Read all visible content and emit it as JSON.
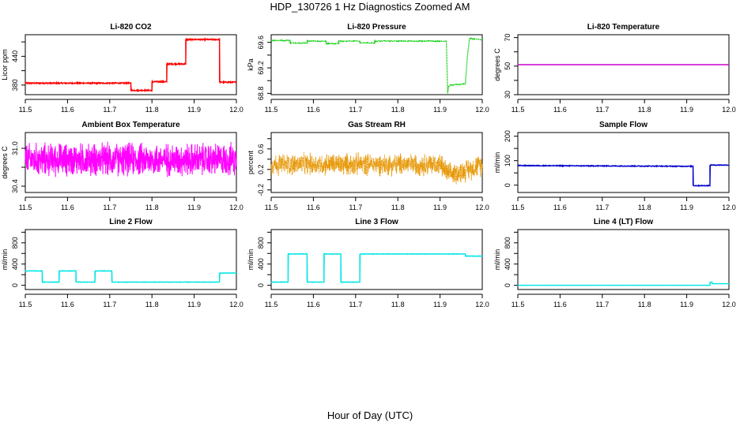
{
  "figure": {
    "title": "HDP_130726  1 Hz Diagnostics Zoomed AM",
    "xlabel": "Hour of Day (UTC)"
  },
  "chart_data": [
    {
      "type": "line",
      "title": "Li-820 CO2",
      "xlabel": "",
      "ylabel": "Licor ppm",
      "xlim": [
        11.5,
        12.0
      ],
      "ylim": [
        360,
        485
      ],
      "xticks": [
        11.5,
        11.6,
        11.7,
        11.8,
        11.9,
        12.0
      ],
      "xtick_labels": [
        "11.5",
        "11.6",
        "11.7",
        "11.8",
        "11.9",
        "12.0"
      ],
      "yticks": [
        380,
        410,
        440,
        470
      ],
      "ytick_labels": [
        "380",
        "",
        "440",
        ""
      ],
      "color": "#ff0000",
      "noise": 1.2,
      "series": [
        {
          "x": [
            11.5,
            11.75,
            11.75,
            11.8,
            11.8,
            11.835,
            11.835,
            11.88,
            11.88,
            11.96,
            11.96,
            12.0
          ],
          "y": [
            384,
            384,
            369,
            369,
            387,
            387,
            424,
            424,
            475,
            475,
            386,
            386
          ]
        }
      ]
    },
    {
      "type": "line",
      "title": "Li-820 Pressure",
      "xlabel": "",
      "ylabel": "kPa",
      "xlim": [
        11.5,
        12.0
      ],
      "ylim": [
        68.78,
        69.72
      ],
      "xticks": [
        11.5,
        11.6,
        11.7,
        11.8,
        11.9,
        12.0
      ],
      "xtick_labels": [
        "11.5",
        "11.6",
        "11.7",
        "11.8",
        "11.9",
        "12.0"
      ],
      "yticks": [
        68.8,
        69.0,
        69.2,
        69.4,
        69.6
      ],
      "ytick_labels": [
        "68.8",
        "",
        "69.2",
        "",
        "69.6"
      ],
      "color": "#00cc00",
      "noise": 0.005,
      "dotted": true,
      "series": [
        {
          "x": [
            11.5,
            11.545,
            11.545,
            11.585,
            11.585,
            11.63,
            11.63,
            11.66,
            11.66,
            11.71,
            11.71,
            11.745,
            11.745,
            11.915,
            11.918,
            11.92,
            11.925,
            11.96,
            11.965,
            11.97,
            12.0
          ],
          "y": [
            69.63,
            69.63,
            69.59,
            69.59,
            69.62,
            69.62,
            69.58,
            69.58,
            69.62,
            69.62,
            69.59,
            69.59,
            69.62,
            69.62,
            68.8,
            68.9,
            68.93,
            68.95,
            69.4,
            69.66,
            69.64
          ]
        }
      ]
    },
    {
      "type": "line",
      "title": "Li-820 Temperature",
      "xlabel": "",
      "ylabel": "degrees C",
      "xlim": [
        11.5,
        12.0
      ],
      "ylim": [
        30,
        72
      ],
      "xticks": [
        11.5,
        11.6,
        11.7,
        11.8,
        11.9,
        12.0
      ],
      "xtick_labels": [
        "11.5",
        "11.6",
        "11.7",
        "11.8",
        "11.9",
        "12.0"
      ],
      "yticks": [
        30,
        40,
        50,
        60,
        70
      ],
      "ytick_labels": [
        "30",
        "",
        "50",
        "",
        "70"
      ],
      "color": "#cc00cc",
      "noise": 0,
      "series": [
        {
          "x": [
            11.5,
            12.0
          ],
          "y": [
            51,
            51
          ]
        }
      ]
    },
    {
      "type": "line",
      "title": "Ambient Box Temperature",
      "xlabel": "",
      "ylabel": "degrees C",
      "xlim": [
        11.5,
        12.0
      ],
      "ylim": [
        30.3,
        31.25
      ],
      "xticks": [
        11.5,
        11.6,
        11.7,
        11.8,
        11.9,
        12.0
      ],
      "xtick_labels": [
        "11.5",
        "11.6",
        "11.7",
        "11.8",
        "11.9",
        "12.0"
      ],
      "yticks": [
        30.4,
        30.7,
        31.0
      ],
      "ytick_labels": [
        "30.4",
        "",
        "31.0"
      ],
      "color": "#ff00ff",
      "noise": 0.22,
      "dense": true,
      "series": [
        {
          "x": [
            11.5,
            12.0
          ],
          "y": [
            30.82,
            30.82
          ]
        }
      ]
    },
    {
      "type": "line",
      "title": "Gas Stream RH",
      "xlabel": "",
      "ylabel": "percent",
      "xlim": [
        11.5,
        12.0
      ],
      "ylim": [
        -0.25,
        0.92
      ],
      "xticks": [
        11.5,
        11.6,
        11.7,
        11.8,
        11.9,
        12.0
      ],
      "xtick_labels": [
        "11.5",
        "11.6",
        "11.7",
        "11.8",
        "11.9",
        "12.0"
      ],
      "yticks": [
        -0.2,
        0.0,
        0.2,
        0.4,
        0.6,
        0.8
      ],
      "ytick_labels": [
        "-0.2",
        "",
        "0.2",
        "",
        "0.6",
        ""
      ],
      "color": "#e69500",
      "noise": 0.18,
      "dense": true,
      "dotted": true,
      "series": [
        {
          "x": [
            11.5,
            11.9,
            11.92,
            11.95,
            12.0
          ],
          "y": [
            0.3,
            0.3,
            0.1,
            0.15,
            0.3
          ]
        }
      ]
    },
    {
      "type": "line",
      "title": "Sample Flow",
      "xlabel": "",
      "ylabel": "ml/min",
      "xlim": [
        11.5,
        12.0
      ],
      "ylim": [
        -30,
        215
      ],
      "xticks": [
        11.5,
        11.6,
        11.7,
        11.8,
        11.9,
        12.0
      ],
      "xtick_labels": [
        "11.5",
        "11.6",
        "11.7",
        "11.8",
        "11.9",
        "12.0"
      ],
      "yticks": [
        0,
        50,
        100,
        150,
        200
      ],
      "ytick_labels": [
        "0",
        "",
        "100",
        "",
        "200"
      ],
      "color": "#0000cc",
      "noise": 1.5,
      "series": [
        {
          "x": [
            11.5,
            11.915,
            11.915,
            11.955,
            11.955,
            12.0
          ],
          "y": [
            80,
            77,
            -2,
            -2,
            82,
            82
          ]
        }
      ]
    },
    {
      "type": "line",
      "title": "Line 2 Flow",
      "xlabel": "",
      "ylabel": "ml/min",
      "xlim": [
        11.5,
        12.0
      ],
      "ylim": [
        -80,
        1050
      ],
      "xticks": [
        11.5,
        11.6,
        11.7,
        11.8,
        11.9,
        12.0
      ],
      "xtick_labels": [
        "11.5",
        "11.6",
        "11.7",
        "11.8",
        "11.9",
        "12.0"
      ],
      "yticks": [
        0,
        200,
        400,
        600,
        800,
        1000
      ],
      "ytick_labels": [
        "0",
        "",
        "400",
        "",
        "800",
        ""
      ],
      "color": "#00e5e5",
      "noise": 4,
      "series": [
        {
          "x": [
            11.5,
            11.54,
            11.54,
            11.58,
            11.58,
            11.62,
            11.62,
            11.665,
            11.665,
            11.705,
            11.705,
            11.96,
            11.96,
            12.0
          ],
          "y": [
            270,
            270,
            60,
            60,
            270,
            270,
            60,
            60,
            270,
            270,
            60,
            60,
            230,
            230
          ]
        }
      ]
    },
    {
      "type": "line",
      "title": "Line 3 Flow",
      "xlabel": "",
      "ylabel": "ml/min",
      "xlim": [
        11.5,
        12.0
      ],
      "ylim": [
        -80,
        1050
      ],
      "xticks": [
        11.5,
        11.6,
        11.7,
        11.8,
        11.9,
        12.0
      ],
      "xtick_labels": [
        "11.5",
        "11.6",
        "11.7",
        "11.8",
        "11.9",
        "12.0"
      ],
      "yticks": [
        0,
        200,
        400,
        600,
        800,
        1000
      ],
      "ytick_labels": [
        "0",
        "",
        "400",
        "",
        "800",
        ""
      ],
      "color": "#00e5e5",
      "noise": 4,
      "series": [
        {
          "x": [
            11.5,
            11.54,
            11.54,
            11.585,
            11.585,
            11.625,
            11.625,
            11.665,
            11.665,
            11.71,
            11.71,
            11.96,
            11.96,
            12.0
          ],
          "y": [
            60,
            60,
            590,
            590,
            60,
            60,
            590,
            590,
            60,
            60,
            590,
            590,
            550,
            550
          ]
        }
      ]
    },
    {
      "type": "line",
      "title": "Line 4 (LT) Flow",
      "xlabel": "",
      "ylabel": "ml/min",
      "xlim": [
        11.5,
        12.0
      ],
      "ylim": [
        -80,
        1050
      ],
      "xticks": [
        11.5,
        11.6,
        11.7,
        11.8,
        11.9,
        12.0
      ],
      "xtick_labels": [
        "11.5",
        "11.6",
        "11.7",
        "11.8",
        "11.9",
        "12.0"
      ],
      "yticks": [
        0,
        200,
        400,
        600,
        800,
        1000
      ],
      "ytick_labels": [
        "0",
        "",
        "400",
        "",
        "800",
        ""
      ],
      "color": "#00e5e5",
      "noise": 1,
      "series": [
        {
          "x": [
            11.5,
            11.955,
            11.955,
            11.96,
            11.96,
            12.0
          ],
          "y": [
            0,
            0,
            60,
            60,
            30,
            30
          ]
        }
      ]
    }
  ]
}
